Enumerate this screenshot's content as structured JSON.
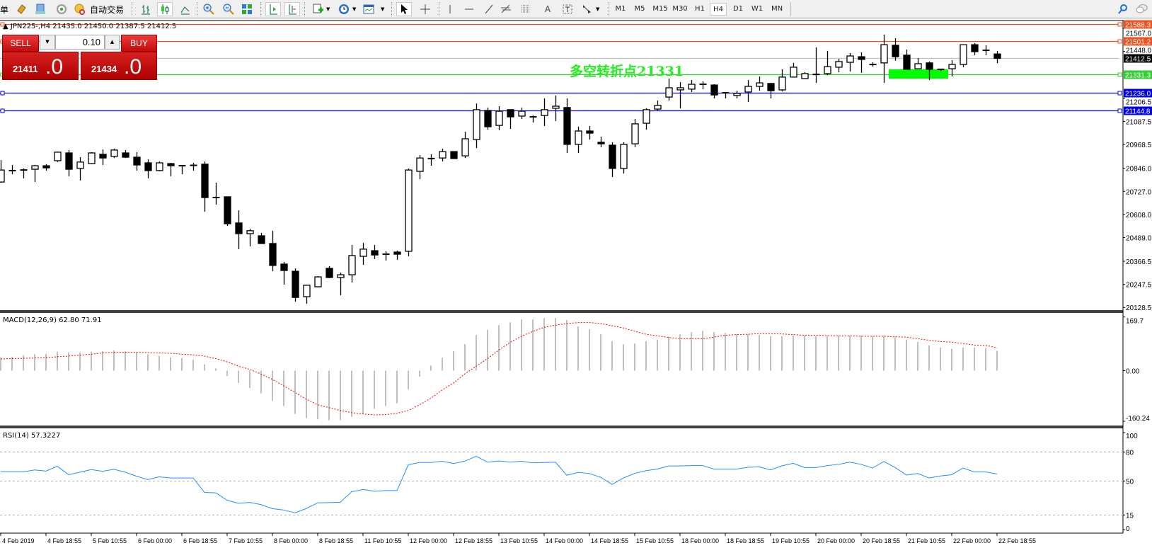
{
  "toolbar": {
    "menu_fragment": "单",
    "auto_trading_label": "自动交易",
    "icons": [
      "gold-icon",
      "market-watch-icon",
      "signal-icon",
      "auto-trading-icon",
      "bar-chart-icon",
      "candlestick-icon",
      "line-chart-icon",
      "zoom-in-icon",
      "zoom-out-icon",
      "tile-windows-icon",
      "chart-shift-icon",
      "autoscroll-icon",
      "new-chart-icon",
      "periods-icon",
      "templates-icon",
      "cursor-icon",
      "crosshair-icon",
      "vertical-line-icon",
      "horizontal-line-icon",
      "trendline-icon",
      "fibonacci-icon",
      "fibo-lines-icon",
      "text-icon",
      "text-label-icon",
      "arrows-icon",
      "search-icon",
      "chat-icon"
    ],
    "timeframes": [
      "M1",
      "M5",
      "M15",
      "M30",
      "H1",
      "H4",
      "D1",
      "W1",
      "MN"
    ],
    "active_timeframe": "H4",
    "text_tool_label": "A"
  },
  "chart": {
    "title": "JPN225-,H4  21435.0 21450.0 21387.5 21412.5",
    "symbol": "JPN225-",
    "timeframe": "H4",
    "ohlc": {
      "open": 21435.0,
      "high": 21450.0,
      "low": 21387.5,
      "close": 21412.5
    },
    "annotation_text": "多空转折点21331",
    "annotation_color": "#22ee22",
    "zone": {
      "price_low": 21308,
      "price_high": 21356,
      "color": "#00ff00"
    },
    "price_ticks": [
      "21567.0",
      "21448.0",
      "21206.5",
      "21087.5",
      "20968.5",
      "20846.0",
      "20727.0",
      "20608.0",
      "20489.0",
      "20366.5",
      "20247.5",
      "20128.5"
    ],
    "levels": [
      {
        "price": "21588.3",
        "color": "#f0501e",
        "label_text_color": "#ffffff"
      },
      {
        "price": "21501.2",
        "color": "#f0501e",
        "label_text_color": "#ffffff"
      },
      {
        "price": "21412.5",
        "color": "#c0c0c0",
        "label_bg": "#000000",
        "label_text_color": "#ffffff"
      },
      {
        "price": "21331.3",
        "color": "#32cd32",
        "label_text_color": "#ffffff"
      },
      {
        "price": "21236.0",
        "color": "#0000e6",
        "label_text_color": "#ffffff"
      },
      {
        "price": "21144.8",
        "color": "#0000e6",
        "label_text_color": "#ffffff"
      }
    ],
    "candles": [
      [
        20775,
        20888,
        20772,
        20837
      ],
      [
        20834,
        20863,
        20815,
        20834
      ],
      [
        20837,
        20845,
        20794,
        20837
      ],
      [
        20841,
        20863,
        20775,
        20859
      ],
      [
        20859,
        20867,
        20834,
        20848
      ],
      [
        20885,
        20932,
        20878,
        20929
      ],
      [
        20925,
        20940,
        20805,
        20841
      ],
      [
        20845,
        20903,
        20783,
        20878
      ],
      [
        20870,
        20929,
        20867,
        20925
      ],
      [
        20918,
        20943,
        20863,
        20899
      ],
      [
        20907,
        20947,
        20899,
        20940
      ],
      [
        20925,
        20940,
        20899,
        20903
      ],
      [
        20903,
        20929,
        20834,
        20863
      ],
      [
        20874,
        20892,
        20794,
        20834
      ],
      [
        20834,
        20881,
        20830,
        20874
      ],
      [
        20870,
        20874,
        20805,
        20859
      ],
      [
        20859,
        20863,
        20815,
        20856
      ],
      [
        20861,
        20874,
        20834,
        20861
      ],
      [
        20867,
        20881,
        20622,
        20695
      ],
      [
        20695,
        20772,
        20659,
        20695
      ],
      [
        20699,
        20699,
        20549,
        20560
      ],
      [
        20564,
        20629,
        20429,
        20509
      ],
      [
        20509,
        20534,
        20443,
        20524
      ],
      [
        20498,
        20513,
        20458,
        20458
      ],
      [
        20458,
        20524,
        20315,
        20345
      ],
      [
        20352,
        20363,
        20246,
        20319
      ],
      [
        20315,
        20330,
        20158,
        20180
      ],
      [
        20184,
        20246,
        20148,
        20243
      ],
      [
        20235,
        20290,
        20232,
        20286
      ],
      [
        20330,
        20341,
        20279,
        20283
      ],
      [
        20283,
        20308,
        20191,
        20297
      ],
      [
        20297,
        20451,
        20257,
        20396
      ],
      [
        20392,
        20461,
        20348,
        20429
      ],
      [
        20421,
        20451,
        20378,
        20399
      ],
      [
        20399,
        20418,
        20370,
        20403
      ],
      [
        20414,
        20421,
        20374,
        20403
      ],
      [
        20418,
        20845,
        20392,
        20837
      ],
      [
        20830,
        20914,
        20790,
        20899
      ],
      [
        20896,
        20918,
        20859,
        20896
      ],
      [
        20899,
        20947,
        20881,
        20932
      ],
      [
        20932,
        20932,
        20896,
        20896
      ],
      [
        20910,
        21034,
        20899,
        20998
      ],
      [
        20994,
        21180,
        20950,
        21148
      ],
      [
        21144,
        21159,
        21045,
        21060
      ],
      [
        21067,
        21166,
        21042,
        21140
      ],
      [
        21148,
        21148,
        21049,
        21111
      ],
      [
        21115,
        21159,
        21100,
        21140
      ],
      [
        21111,
        21118,
        21082,
        21111
      ],
      [
        21118,
        21206,
        21064,
        21148
      ],
      [
        21155,
        21221,
        21089,
        21166
      ],
      [
        21159,
        21206,
        20925,
        20969
      ],
      [
        20969,
        21060,
        20925,
        21038
      ],
      [
        21038,
        21064,
        20994,
        21027
      ],
      [
        20980,
        21009,
        20954,
        20972
      ],
      [
        20965,
        20980,
        20801,
        20845
      ],
      [
        20845,
        20980,
        20819,
        20969
      ],
      [
        20972,
        21100,
        20954,
        21075
      ],
      [
        21078,
        21155,
        21045,
        21148
      ],
      [
        21151,
        21195,
        21144,
        21170
      ],
      [
        21213,
        21308,
        21195,
        21261
      ],
      [
        21250,
        21290,
        21155,
        21261
      ],
      [
        21254,
        21301,
        21239,
        21279
      ],
      [
        21279,
        21294,
        21254,
        21279
      ],
      [
        21275,
        21279,
        21206,
        21224
      ],
      [
        21235,
        21239,
        21206,
        21235
      ],
      [
        21221,
        21246,
        21206,
        21232
      ],
      [
        21239,
        21301,
        21188,
        21268
      ],
      [
        21268,
        21319,
        21246,
        21286
      ],
      [
        21283,
        21286,
        21206,
        21246
      ],
      [
        21250,
        21356,
        21243,
        21316
      ],
      [
        21316,
        21389,
        21316,
        21367
      ],
      [
        21308,
        21341,
        21308,
        21334
      ],
      [
        21330,
        21469,
        21286,
        21326
      ],
      [
        21334,
        21451,
        21326,
        21370
      ],
      [
        21367,
        21410,
        21341,
        21396
      ],
      [
        21392,
        21440,
        21345,
        21425
      ],
      [
        21421,
        21443,
        21338,
        21407
      ],
      [
        21381,
        21392,
        21370,
        21381
      ],
      [
        21389,
        21535,
        21286,
        21483
      ],
      [
        21480,
        21516,
        21400,
        21421
      ],
      [
        21429,
        21458,
        21356,
        21356
      ],
      [
        21359,
        21414,
        21359,
        21385
      ],
      [
        21389,
        21396,
        21301,
        21356
      ],
      [
        21356,
        21359,
        21348,
        21356
      ],
      [
        21359,
        21403,
        21319,
        21381
      ],
      [
        21381,
        21483,
        21367,
        21483
      ],
      [
        21483,
        21491,
        21429,
        21447
      ],
      [
        21454,
        21480,
        21429,
        21454
      ],
      [
        21435.0,
        21450.0,
        21387.5,
        21412.5
      ]
    ],
    "up_color": "#ffffff",
    "down_color": "#000000"
  },
  "macd": {
    "label": "MACD(12,26,9) 62.80 71.91",
    "ticks": [
      "169.7",
      "0.00",
      "-160.24"
    ],
    "histogram": [
      42,
      44,
      49,
      52,
      53,
      60,
      58,
      58,
      60,
      62,
      64,
      61,
      58,
      52,
      47,
      42,
      40,
      35,
      20,
      7,
      -17,
      -39,
      -55,
      -72,
      -95,
      -112,
      -137,
      -150,
      -154,
      -157,
      -157,
      -146,
      -137,
      -121,
      -112,
      -103,
      -59,
      -19,
      16,
      41,
      62,
      84,
      113,
      129,
      144,
      153,
      162,
      162,
      166,
      166,
      160,
      140,
      131,
      115,
      93,
      84,
      86,
      93,
      98,
      108,
      115,
      122,
      126,
      122,
      120,
      115,
      115,
      113,
      109,
      109,
      111,
      111,
      109,
      109,
      111,
      111,
      111,
      109,
      111,
      106,
      98,
      91,
      80,
      73,
      69,
      73,
      73,
      71,
      62.8
    ],
    "signal": [
      37,
      38,
      39,
      40,
      41,
      44,
      46,
      49,
      52,
      56,
      58,
      58,
      58,
      57,
      56,
      55,
      52,
      50,
      46,
      38,
      28,
      14,
      4,
      -11,
      -28,
      -48,
      -69,
      -91,
      -108,
      -117,
      -126,
      -133,
      -137,
      -140,
      -139,
      -135,
      -126,
      -108,
      -87,
      -61,
      -39,
      -10,
      14,
      38,
      65,
      90,
      109,
      124,
      137,
      144,
      149,
      152,
      152,
      149,
      142,
      135,
      125,
      115,
      110,
      105,
      101,
      101,
      101,
      106,
      112,
      114,
      115,
      117,
      117,
      116,
      114,
      112,
      112,
      111,
      110,
      110,
      109,
      109,
      109,
      107,
      106,
      101,
      96,
      92,
      90,
      86,
      81,
      80,
      71.91
    ],
    "hist_color": "#c0c0c0",
    "signal_color": "#ff0000"
  },
  "rsi": {
    "label": "RSI(14) 57.3227",
    "ticks": [
      "100",
      "80",
      "50",
      "15",
      "0"
    ],
    "levels": [
      80,
      50,
      15
    ],
    "values": [
      59.6,
      59.6,
      59.6,
      61.5,
      60.3,
      65.3,
      56.6,
      59.2,
      61.9,
      60.1,
      62.1,
      59.2,
      55.0,
      51.6,
      54.4,
      53.2,
      53.2,
      53.2,
      38.3,
      37.9,
      30.3,
      27.1,
      28.0,
      25.7,
      21.6,
      20.2,
      17.3,
      21.8,
      27.6,
      27.8,
      28.2,
      39.0,
      41.3,
      39.5,
      40.2,
      40.2,
      66.9,
      69.2,
      69.2,
      70.4,
      68.1,
      70.6,
      75.6,
      69.5,
      70.8,
      69.5,
      70.4,
      68.8,
      69.2,
      69.5,
      56.0,
      58.9,
      57.8,
      53.9,
      46.6,
      53.2,
      58.0,
      60.8,
      62.4,
      65.6,
      65.6,
      66.0,
      66.0,
      62.4,
      62.4,
      62.4,
      64.2,
      64.7,
      61.5,
      65.8,
      68.3,
      64.0,
      64.0,
      66.0,
      67.2,
      69.5,
      67.2,
      63.5,
      70.2,
      64.0,
      56.2,
      57.8,
      53.2,
      55.3,
      56.6,
      63.5,
      59.4,
      59.4,
      57.3227
    ],
    "line_color": "#1e90ff"
  },
  "time_axis": [
    "4 Feb 2019",
    "4 Feb 18:55",
    "5 Feb 10:55",
    "6 Feb 00:00",
    "6 Feb 18:55",
    "7 Feb 10:55",
    "8 Feb 00:00",
    "8 Feb 18:55",
    "11 Feb 10:55",
    "12 Feb 00:00",
    "12 Feb 18:55",
    "13 Feb 10:55",
    "14 Feb 00:00",
    "14 Feb 18:55",
    "15 Feb 10:55",
    "18 Feb 00:00",
    "18 Feb 18:55",
    "19 Feb 10:55",
    "20 Feb 00:00",
    "20 Feb 18:55",
    "21 Feb 10:55",
    "22 Feb 00:00",
    "22 Feb 18:55"
  ],
  "trade_panel": {
    "sell_label": "SELL",
    "buy_label": "BUY",
    "lot": "0.10",
    "sell_price_main": "21411",
    "sell_price_frac": ".0",
    "buy_price_main": "21434",
    "buy_price_frac": ".0",
    "down_arrow": "▼",
    "up_arrow": "▲"
  }
}
